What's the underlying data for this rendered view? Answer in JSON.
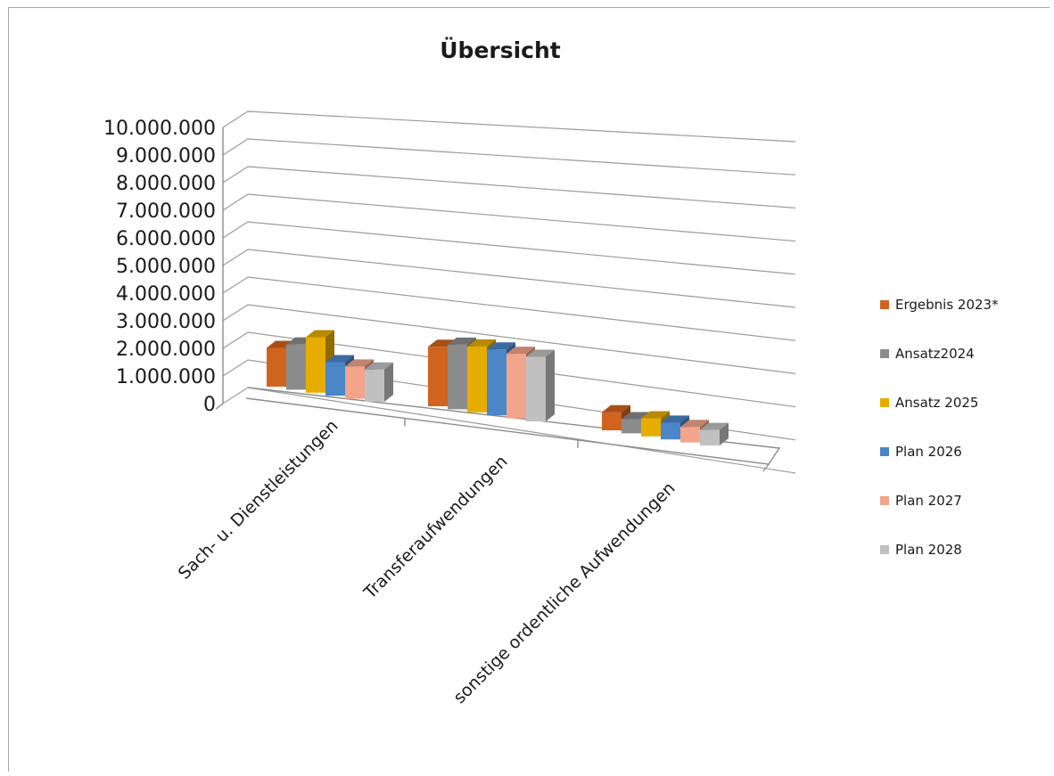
{
  "chart_data": {
    "type": "bar",
    "title": "Übersicht",
    "xlabel": "",
    "ylabel": "",
    "ylim": [
      0,
      10000000
    ],
    "y_ticks": [
      "0",
      "1.000.000",
      "2.000.000",
      "3.000.000",
      "4.000.000",
      "5.000.000",
      "6.000.000",
      "7.000.000",
      "8.000.000",
      "9.000.000",
      "10.000.000"
    ],
    "categories": [
      "Sach- u. Dienstleistungen",
      "Transferaufwendungen",
      "sonstige ordentliche Aufwendungen"
    ],
    "series": [
      {
        "name": "Ergebnis 2023*",
        "color": "#d0641e",
        "values": [
          1500000,
          2300000,
          700000
        ]
      },
      {
        "name": "Ansatz2024",
        "color": "#8c8c8c",
        "values": [
          1750000,
          2500000,
          550000
        ]
      },
      {
        "name": "Ansatz 2025",
        "color": "#e6ac00",
        "values": [
          2150000,
          2550000,
          700000
        ]
      },
      {
        "name": "Plan 2026",
        "color": "#4a86c8",
        "values": [
          1300000,
          2550000,
          650000
        ]
      },
      {
        "name": "Plan 2027",
        "color": "#f2a58a",
        "values": [
          1250000,
          2500000,
          600000
        ]
      },
      {
        "name": "Plan 2028",
        "color": "#c0c0c0",
        "values": [
          1250000,
          2500000,
          600000
        ]
      }
    ],
    "grid": true,
    "legend_position": "right",
    "projection": "3d-clustered-column"
  }
}
